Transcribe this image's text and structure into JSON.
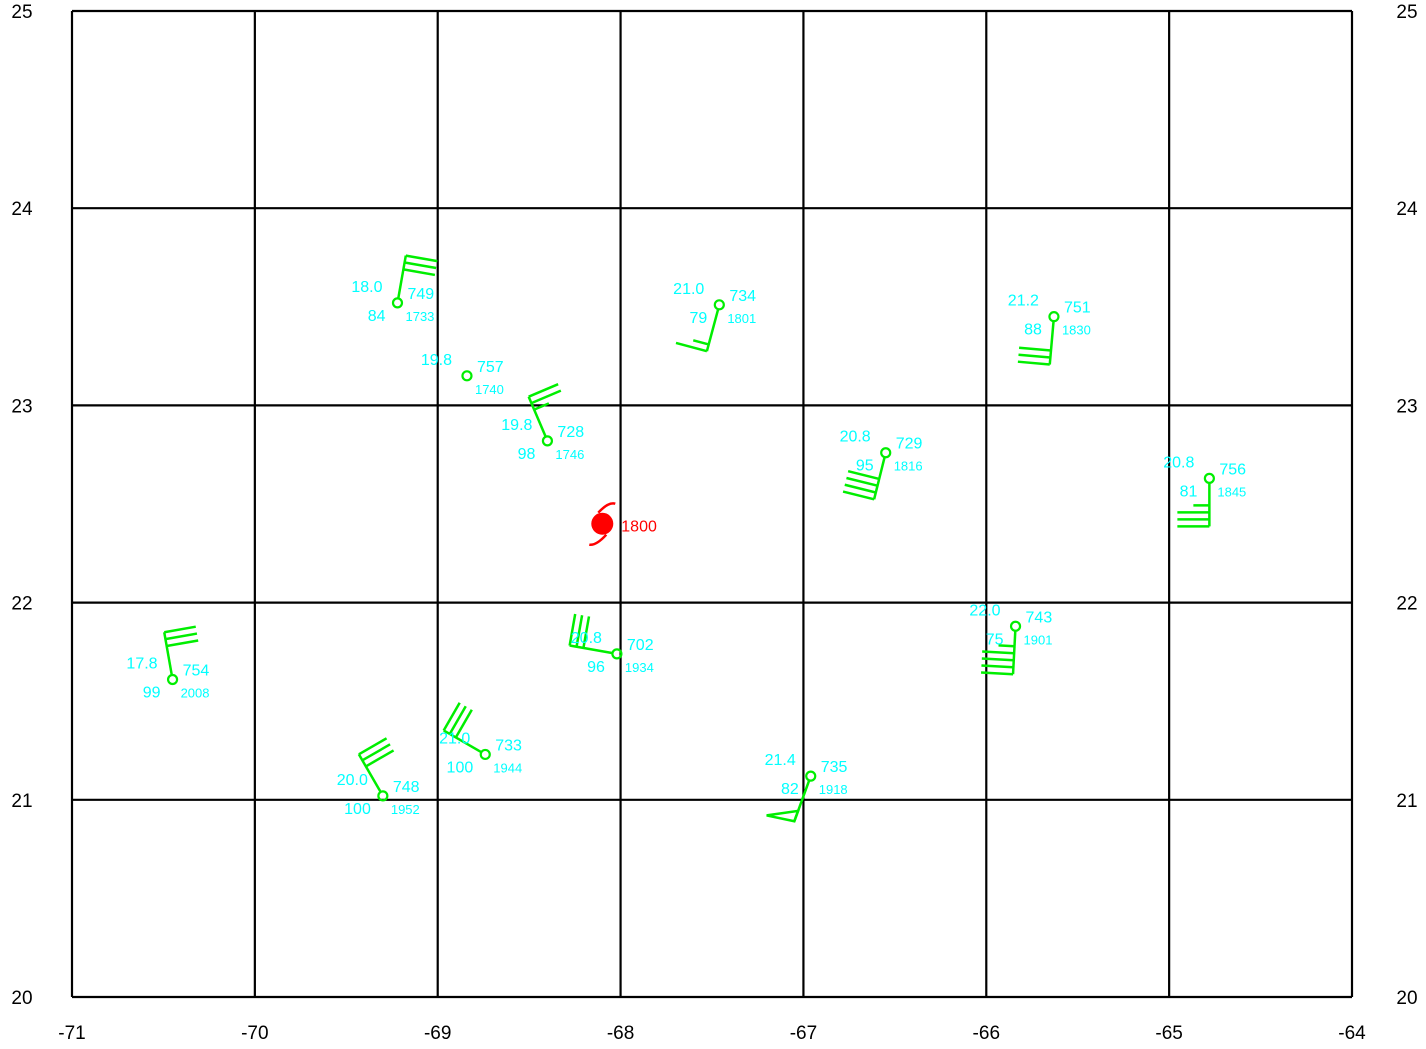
{
  "map": {
    "lon_range": [
      -71,
      -64
    ],
    "lat_range": [
      20,
      25
    ],
    "lon_ticks": [
      "-71",
      "-70",
      "-69",
      "-68",
      "-67",
      "-66",
      "-65",
      "-64"
    ],
    "lat_ticks": [
      "20",
      "21",
      "22",
      "23",
      "24",
      "25"
    ],
    "grid": true,
    "colors": {
      "grid": "#000000",
      "obs_symbol": "#00ee00",
      "obs_text": "#00ffff",
      "storm": "#ff0000"
    }
  },
  "storm": {
    "lon": -68.1,
    "lat": 22.4,
    "label": "1800",
    "icon": "hurricane-icon"
  },
  "observations": [
    {
      "lon": -69.22,
      "lat": 23.52,
      "temp": "18.0",
      "rh": "84",
      "pres": "749",
      "time": "1733",
      "wind_dir": 10,
      "barbs": [
        "full",
        "full",
        "full"
      ]
    },
    {
      "lon": -68.84,
      "lat": 23.15,
      "temp": "19.8",
      "rh": "",
      "pres": "757",
      "time": "1740",
      "wind_dir": 0,
      "barbs": []
    },
    {
      "lon": -68.4,
      "lat": 22.82,
      "temp": "19.8",
      "rh": "98",
      "pres": "728",
      "time": "1746",
      "wind_dir": 337,
      "barbs": [
        "full",
        "full",
        "half"
      ]
    },
    {
      "lon": -67.46,
      "lat": 23.51,
      "temp": "21.0",
      "rh": "79",
      "pres": "734",
      "time": "1801",
      "wind_dir": 195,
      "barbs": [
        "full",
        "half"
      ]
    },
    {
      "lon": -65.63,
      "lat": 23.45,
      "temp": "21.2",
      "rh": "88",
      "pres": "751",
      "time": "1830",
      "wind_dir": 185,
      "barbs": [
        "full",
        "full",
        "full"
      ]
    },
    {
      "lon": -66.55,
      "lat": 22.76,
      "temp": "20.8",
      "rh": "95",
      "pres": "729",
      "time": "1816",
      "wind_dir": 194,
      "barbs": [
        "full",
        "full",
        "full",
        "full"
      ]
    },
    {
      "lon": -64.78,
      "lat": 22.63,
      "temp": "20.8",
      "rh": "81",
      "pres": "756",
      "time": "1845",
      "wind_dir": 180,
      "barbs": [
        "full",
        "full",
        "full",
        "half"
      ]
    },
    {
      "lon": -68.02,
      "lat": 21.74,
      "temp": "20.8",
      "rh": "96",
      "pres": "702",
      "time": "1934",
      "wind_dir": 280,
      "barbs": [
        "full",
        "full",
        "full"
      ]
    },
    {
      "lon": -65.84,
      "lat": 21.88,
      "temp": "22.0",
      "rh": "75",
      "pres": "743",
      "time": "1901",
      "wind_dir": 183,
      "barbs": [
        "full",
        "full",
        "full",
        "full",
        "half"
      ]
    },
    {
      "lon": -70.45,
      "lat": 21.61,
      "temp": "17.8",
      "rh": "99",
      "pres": "754",
      "time": "2008",
      "wind_dir": 350,
      "barbs": [
        "full",
        "full",
        "full"
      ]
    },
    {
      "lon": -68.74,
      "lat": 21.23,
      "temp": "21.0",
      "rh": "100",
      "pres": "733",
      "time": "1944",
      "wind_dir": 300,
      "barbs": [
        "full",
        "full",
        "full"
      ]
    },
    {
      "lon": -69.3,
      "lat": 21.02,
      "temp": "20.0",
      "rh": "100",
      "pres": "748",
      "time": "1952",
      "wind_dir": 330,
      "barbs": [
        "full",
        "full",
        "full"
      ]
    },
    {
      "lon": -66.96,
      "lat": 21.12,
      "temp": "21.4",
      "rh": "82",
      "pres": "735",
      "time": "1918",
      "wind_dir": 200,
      "barbs": [
        "pennant"
      ]
    }
  ]
}
